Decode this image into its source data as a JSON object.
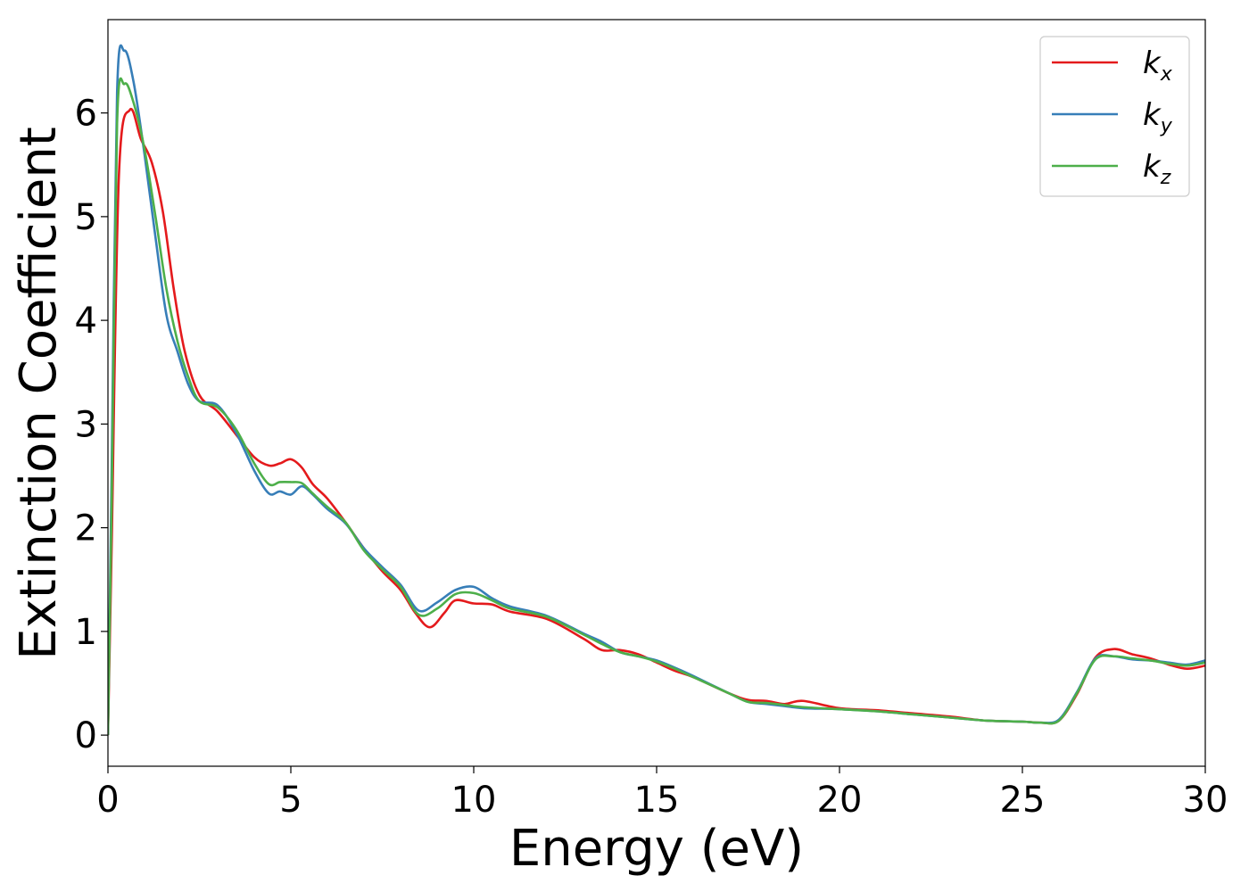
{
  "chart_data": {
    "type": "line",
    "xlabel": "Energy (eV)",
    "ylabel": "Extinction Coefficient",
    "xlim": [
      0,
      30
    ],
    "ylim": [
      -0.3,
      6.9
    ],
    "xticks": [
      0,
      5,
      10,
      15,
      20,
      25,
      30
    ],
    "yticks": [
      0,
      1,
      2,
      3,
      4,
      5,
      6
    ],
    "legend_position": "top-right",
    "grid": false,
    "series": [
      {
        "name": "k",
        "subscript": "x",
        "color": "#e41a1c",
        "x": [
          0,
          0.1,
          0.3,
          0.6,
          0.9,
          1.2,
          1.5,
          1.8,
          2.1,
          2.5,
          3.0,
          3.5,
          4.0,
          4.4,
          4.7,
          5.0,
          5.3,
          5.6,
          6.0,
          6.5,
          7.0,
          7.5,
          8.0,
          8.4,
          8.8,
          9.2,
          9.5,
          10.0,
          10.5,
          11.0,
          12.0,
          13.0,
          13.5,
          14.0,
          14.5,
          15.0,
          15.5,
          16.0,
          17.0,
          17.5,
          18.0,
          18.5,
          19.0,
          20.0,
          21.0,
          22.0,
          23.0,
          24.0,
          25.0,
          25.5,
          26.0,
          26.5,
          27.0,
          27.5,
          28.0,
          28.5,
          29.0,
          29.5,
          30.0
        ],
        "y": [
          0.0,
          1.8,
          5.4,
          6.03,
          5.75,
          5.52,
          5.05,
          4.3,
          3.7,
          3.28,
          3.12,
          2.9,
          2.68,
          2.6,
          2.62,
          2.66,
          2.58,
          2.42,
          2.28,
          2.05,
          1.8,
          1.58,
          1.4,
          1.18,
          1.04,
          1.18,
          1.3,
          1.27,
          1.26,
          1.19,
          1.12,
          0.93,
          0.82,
          0.82,
          0.78,
          0.7,
          0.62,
          0.56,
          0.4,
          0.34,
          0.33,
          0.3,
          0.33,
          0.26,
          0.24,
          0.21,
          0.18,
          0.14,
          0.13,
          0.12,
          0.14,
          0.4,
          0.75,
          0.83,
          0.78,
          0.74,
          0.68,
          0.64,
          0.67
        ]
      },
      {
        "name": "k",
        "subscript": "y",
        "color": "#377eb8",
        "x": [
          0,
          0.1,
          0.25,
          0.45,
          0.7,
          1.0,
          1.3,
          1.6,
          1.9,
          2.2,
          2.5,
          3.0,
          3.5,
          4.0,
          4.4,
          4.7,
          5.0,
          5.3,
          5.6,
          6.0,
          6.5,
          7.0,
          7.5,
          8.0,
          8.5,
          9.0,
          9.5,
          10.0,
          10.5,
          11.0,
          12.0,
          13.0,
          13.5,
          14.0,
          14.5,
          15.0,
          15.5,
          16.0,
          17.0,
          17.5,
          18.0,
          18.5,
          19.0,
          20.0,
          21.0,
          22.0,
          23.0,
          24.0,
          25.0,
          25.5,
          26.0,
          26.5,
          27.0,
          27.5,
          28.0,
          28.5,
          29.0,
          29.5,
          30.0
        ],
        "y": [
          0.0,
          2.5,
          6.2,
          6.6,
          6.3,
          5.6,
          4.8,
          4.05,
          3.7,
          3.38,
          3.22,
          3.18,
          2.92,
          2.55,
          2.33,
          2.35,
          2.32,
          2.4,
          2.32,
          2.18,
          2.04,
          1.8,
          1.62,
          1.45,
          1.2,
          1.28,
          1.4,
          1.43,
          1.32,
          1.24,
          1.15,
          0.98,
          0.9,
          0.8,
          0.76,
          0.72,
          0.65,
          0.57,
          0.4,
          0.32,
          0.3,
          0.28,
          0.26,
          0.25,
          0.23,
          0.2,
          0.17,
          0.14,
          0.13,
          0.12,
          0.15,
          0.42,
          0.74,
          0.76,
          0.73,
          0.72,
          0.7,
          0.68,
          0.72
        ]
      },
      {
        "name": "k",
        "subscript": "z",
        "color": "#4daf4a",
        "x": [
          0,
          0.1,
          0.25,
          0.45,
          0.7,
          1.0,
          1.3,
          1.6,
          1.9,
          2.2,
          2.5,
          3.0,
          3.5,
          4.0,
          4.4,
          4.7,
          5.0,
          5.3,
          5.6,
          6.0,
          6.5,
          7.0,
          7.5,
          8.0,
          8.5,
          9.0,
          9.5,
          10.0,
          10.5,
          11.0,
          12.0,
          13.0,
          13.5,
          14.0,
          14.5,
          15.0,
          15.5,
          16.0,
          17.0,
          17.5,
          18.0,
          18.5,
          19.0,
          20.0,
          21.0,
          22.0,
          23.0,
          24.0,
          25.0,
          25.5,
          26.0,
          26.5,
          27.0,
          27.5,
          28.0,
          28.5,
          29.0,
          29.5,
          30.0
        ],
        "y": [
          0.0,
          2.2,
          5.9,
          6.28,
          6.1,
          5.65,
          5.0,
          4.3,
          3.8,
          3.45,
          3.22,
          3.16,
          2.95,
          2.62,
          2.42,
          2.44,
          2.44,
          2.43,
          2.33,
          2.2,
          2.05,
          1.78,
          1.6,
          1.43,
          1.16,
          1.22,
          1.36,
          1.37,
          1.3,
          1.22,
          1.14,
          0.97,
          0.88,
          0.8,
          0.76,
          0.71,
          0.64,
          0.56,
          0.4,
          0.32,
          0.31,
          0.29,
          0.27,
          0.25,
          0.23,
          0.2,
          0.17,
          0.14,
          0.13,
          0.12,
          0.14,
          0.41,
          0.73,
          0.76,
          0.74,
          0.72,
          0.69,
          0.67,
          0.7
        ]
      }
    ]
  }
}
